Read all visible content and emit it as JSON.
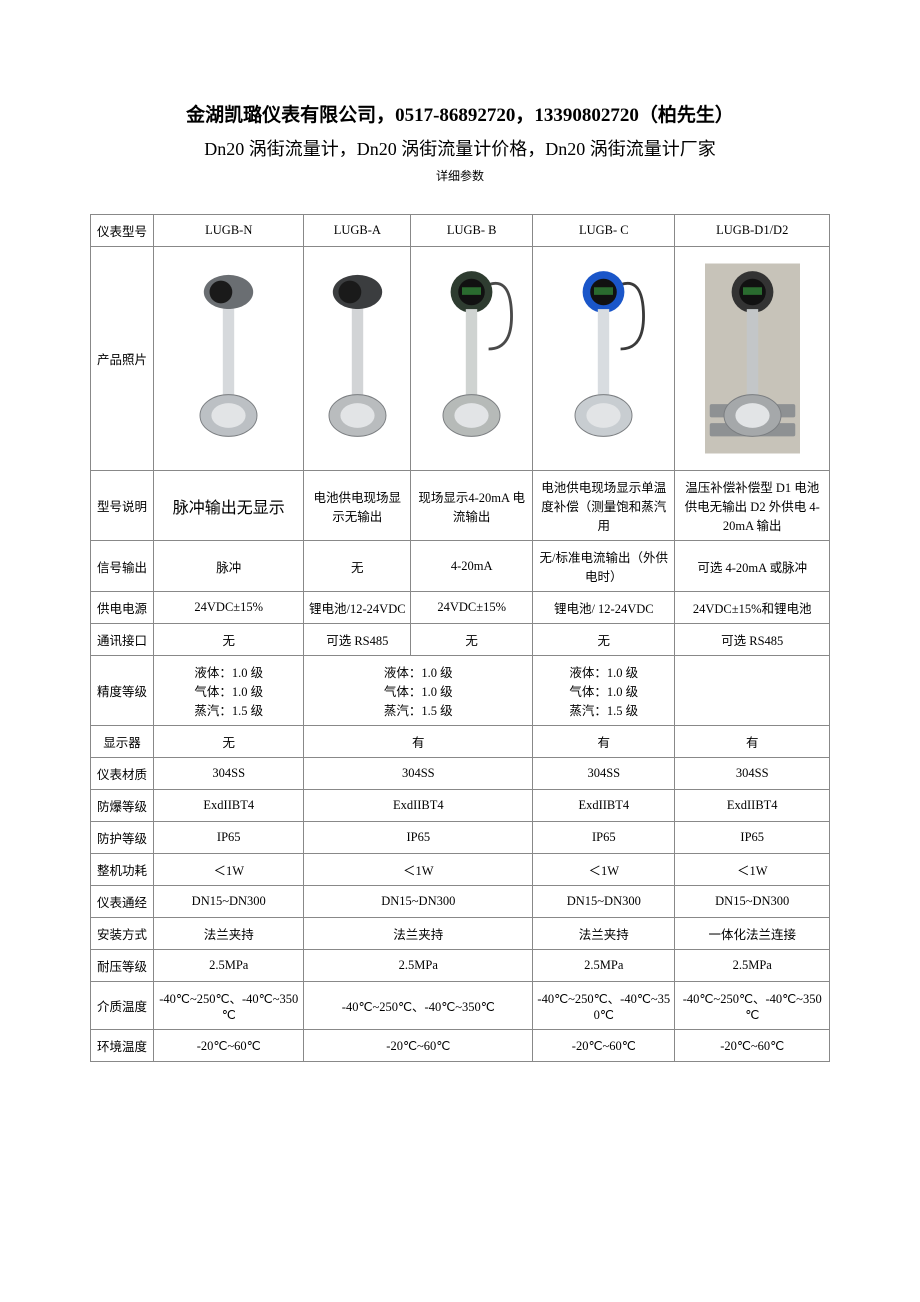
{
  "header": {
    "title": "金湖凯璐仪表有限公司，0517-86892720，13390802720（柏先生）",
    "subtitle": "Dn20 涡街流量计，Dn20 涡街流量计价格，Dn20 涡街流量计厂家",
    "caption": "详细参数"
  },
  "table": {
    "columns": {
      "label": "仪表型号",
      "models": [
        "LUGB-N",
        "LUGB-A",
        "LUGB- B",
        "LUGB- C",
        "LUGB-D1/D2"
      ]
    },
    "photo_row_label": "产品照片",
    "rows": [
      {
        "label": "型号说明",
        "cells": [
          "脉冲输出无显示",
          "电池供电现场显示无输出",
          "现场显示4-20mA 电流输出",
          "电池供电现场显示单温度补偿（测量饱和蒸汽用",
          "温压补偿补偿型 D1 电池供电无输出 D2 外供电 4-20mA 输出"
        ],
        "highlight_first": true
      },
      {
        "label": "信号输出",
        "cells": [
          "脉冲",
          "无",
          "4-20mA",
          "无/标准电流输出（外供电时）",
          "可选 4-20mA 或脉冲"
        ]
      },
      {
        "label": "供电电源",
        "cells": [
          "24VDC±15%",
          "锂电池/12-24VDC",
          "24VDC±15%",
          "锂电池/ 12-24VDC",
          "24VDC±15%和锂电池"
        ]
      },
      {
        "label": "通讯接口",
        "cells": [
          "无",
          "可选 RS485",
          "无",
          "无",
          "可选 RS485"
        ]
      },
      {
        "label": "精度等级",
        "cells": [
          "液体：1.0 级\n气体：1.0 级\n蒸汽：1.5 级",
          "液体：1.0 级\n气体：1.0 级\n蒸汽：1.5 级",
          "液体：1.0 级\n气体：1.0 级\n蒸汽：1.5 级",
          ""
        ],
        "span": [
          1,
          2,
          1,
          1
        ]
      },
      {
        "label": "显示器",
        "cells": [
          "无",
          "有",
          "有",
          "有"
        ],
        "span": [
          1,
          2,
          1,
          1
        ]
      },
      {
        "label": "仪表材质",
        "cells": [
          "304SS",
          "304SS",
          "304SS",
          "304SS"
        ],
        "span": [
          1,
          2,
          1,
          1
        ]
      },
      {
        "label": "防爆等级",
        "cells": [
          "ExdIIBT4",
          "ExdIIBT4",
          "ExdIIBT4",
          "ExdIIBT4"
        ],
        "span": [
          1,
          2,
          1,
          1
        ]
      },
      {
        "label": "防护等级",
        "cells": [
          "IP65",
          "IP65",
          "IP65",
          "IP65"
        ],
        "span": [
          1,
          2,
          1,
          1
        ]
      },
      {
        "label": "整机功耗",
        "cells": [
          "＜1W",
          "＜1W",
          "＜1W",
          "＜1W"
        ],
        "span": [
          1,
          2,
          1,
          1
        ]
      },
      {
        "label": "仪表通经",
        "cells": [
          "DN15~DN300",
          "DN15~DN300",
          "DN15~DN300",
          "DN15~DN300"
        ],
        "span": [
          1,
          2,
          1,
          1
        ]
      },
      {
        "label": "安装方式",
        "cells": [
          "法兰夹持",
          "法兰夹持",
          "法兰夹持",
          "一体化法兰连接"
        ],
        "span": [
          1,
          2,
          1,
          1
        ]
      },
      {
        "label": "耐压等级",
        "cells": [
          "2.5MPa",
          "2.5MPa",
          "2.5MPa",
          "2.5MPa"
        ],
        "span": [
          1,
          2,
          1,
          1
        ]
      },
      {
        "label": "介质温度",
        "cells": [
          "-40℃~250℃、-40℃~350℃",
          "-40℃~250℃、-40℃~350℃",
          "-40℃~250℃、-40℃~350℃",
          "-40℃~250℃、-40℃~350℃"
        ],
        "span": [
          1,
          2,
          1,
          1
        ]
      },
      {
        "label": "环境温度",
        "cells": [
          "-20℃~60℃",
          "-20℃~60℃",
          "-20℃~60℃",
          "-20℃~60℃"
        ],
        "span": [
          1,
          2,
          1,
          1
        ]
      }
    ]
  },
  "images": {
    "n": {
      "head_color": "#6a6e72",
      "body_color": "#bcc0c4",
      "stem_color": "#d6d9dc",
      "bg": "#ffffff"
    },
    "a": {
      "head_color": "#3b3d3f",
      "body_color": "#b9bcbe",
      "stem_color": "#d2d4d6",
      "bg": "#ffffff"
    },
    "b": {
      "head_color": "#2e3c30",
      "body_color": "#b6bab8",
      "stem_color": "#cfd3d1",
      "bg": "#ffffff",
      "cable": "#4a4a4a"
    },
    "c": {
      "head_color": "#1a56c9",
      "body_color": "#c8cdd1",
      "stem_color": "#d8dce0",
      "bg": "#ffffff",
      "cable": "#3a3a3a"
    },
    "d": {
      "head_color": "#333333",
      "body_color": "#a5a8aa",
      "stem_color": "#c3c6c8",
      "bg": "#c7c3b9",
      "flange": "#8e9193"
    }
  }
}
